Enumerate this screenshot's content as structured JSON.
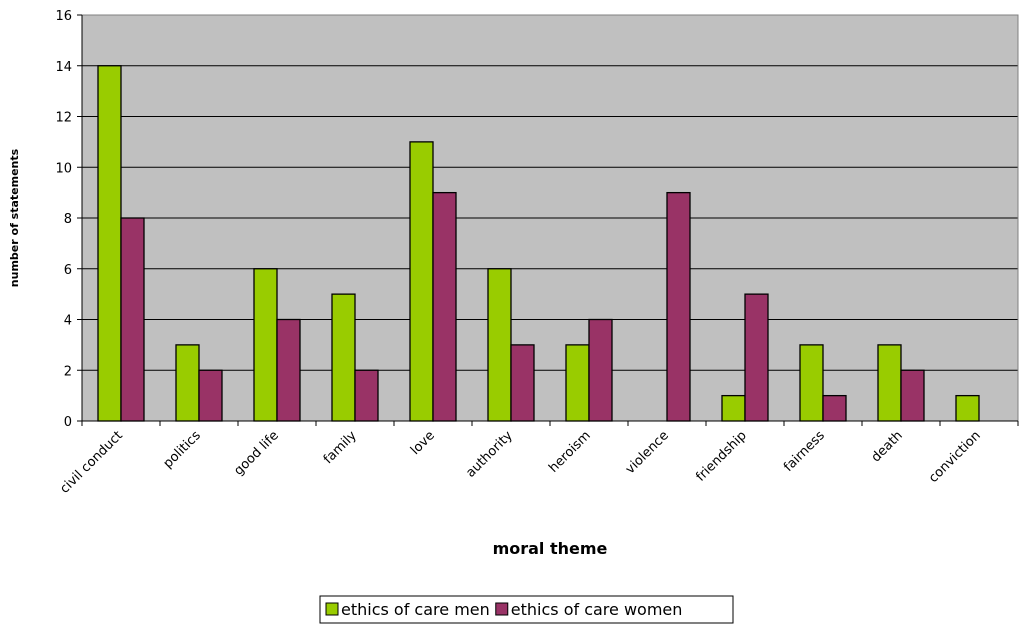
{
  "chart_data": {
    "type": "bar",
    "title": "",
    "xlabel": "moral theme",
    "ylabel": "number of statements",
    "ylim": [
      0,
      16
    ],
    "yticks": [
      0,
      2,
      4,
      6,
      8,
      10,
      12,
      14,
      16
    ],
    "grid": true,
    "legend_position": "bottom",
    "categories": [
      "civil conduct",
      "politics",
      "good life",
      "family",
      "love",
      "authority",
      "heroism",
      "violence",
      "friendship",
      "fairness",
      "death",
      "conviction"
    ],
    "series": [
      {
        "name": "ethics of care men",
        "color": "#99cc00",
        "values": [
          14,
          3,
          6,
          5,
          11,
          6,
          3,
          0,
          1,
          3,
          3,
          1
        ]
      },
      {
        "name": "ethics of care women",
        "color": "#993366",
        "values": [
          8,
          2,
          4,
          2,
          9,
          3,
          4,
          9,
          5,
          1,
          2,
          0
        ]
      }
    ],
    "plot_background": "#c0c0c0"
  }
}
